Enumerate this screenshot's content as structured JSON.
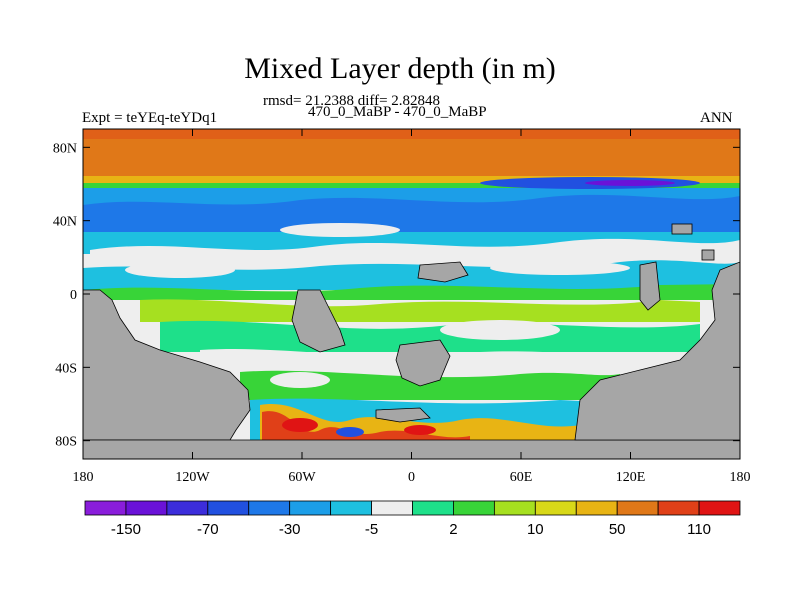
{
  "title": "Mixed Layer depth (in m)",
  "stats": "rmsd= 21.2388 diff= 2.82848",
  "experiment": "Expt = teYEq-teYDq1",
  "case": "470_0_MaBP - 470_0_MaBP",
  "season": "ANN",
  "map": {
    "lon_range": [
      -180,
      180
    ],
    "lat_range": [
      -90,
      90
    ],
    "x_ticks": [
      {
        "value": -180,
        "label": "180"
      },
      {
        "value": -120,
        "label": "120W"
      },
      {
        "value": -60,
        "label": "60W"
      },
      {
        "value": 0,
        "label": "0"
      },
      {
        "value": 60,
        "label": "60E"
      },
      {
        "value": 120,
        "label": "120E"
      },
      {
        "value": 180,
        "label": "180"
      }
    ],
    "y_ticks": [
      {
        "value": 80,
        "label": "80N"
      },
      {
        "value": 40,
        "label": "40N"
      },
      {
        "value": 0,
        "label": "0"
      },
      {
        "value": -40,
        "label": "40S"
      },
      {
        "value": -80,
        "label": "80S"
      }
    ],
    "land_color": "#a6a6a6"
  },
  "colorbar": {
    "colors": [
      "#8a1ddb",
      "#6a12d8",
      "#3c2ddb",
      "#2150e0",
      "#1e78e8",
      "#1c9ee8",
      "#1ec0e0",
      "#eeeeee",
      "#1ee08a",
      "#38d438",
      "#a6e020",
      "#d8d818",
      "#e8b414",
      "#e07818",
      "#e04018",
      "#e01414"
    ],
    "labels": [
      {
        "after_index": 0,
        "text": "-150"
      },
      {
        "after_index": 2,
        "text": "-70"
      },
      {
        "after_index": 4,
        "text": "-30"
      },
      {
        "after_index": 6,
        "text": "-5"
      },
      {
        "after_index": 8,
        "text": "2"
      },
      {
        "after_index": 10,
        "text": "10"
      },
      {
        "after_index": 12,
        "text": "50"
      },
      {
        "after_index": 14,
        "text": "110"
      }
    ]
  }
}
